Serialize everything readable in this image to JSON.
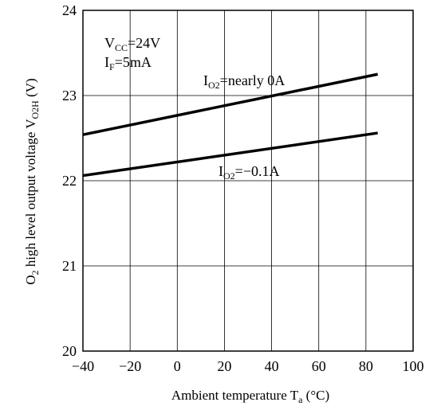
{
  "chart_data": {
    "type": "line",
    "xlabel": {
      "main": "Ambient temperature T",
      "sub": "a",
      "tail": " (°C)"
    },
    "ylabel": {
      "main": "O",
      "sub1": "2",
      "mid": " high level output voltage V",
      "sub2": "O2H",
      "tail": " (V)"
    },
    "xlim": [
      -40,
      100
    ],
    "ylim": [
      20,
      24
    ],
    "xticks": [
      -40,
      -20,
      0,
      20,
      40,
      60,
      80,
      100
    ],
    "xtick_labels": [
      "−40",
      "−20",
      "0",
      "20",
      "40",
      "60",
      "80",
      "100"
    ],
    "yticks": [
      20,
      21,
      22,
      23,
      24
    ],
    "ytick_labels": [
      "20",
      "21",
      "22",
      "23",
      "24"
    ],
    "grid": true,
    "conditions": {
      "vcc": {
        "main": "V",
        "sub": "CC",
        "tail": "=24V"
      },
      "if": {
        "main": "I",
        "sub": "F",
        "tail": "=5mA"
      }
    },
    "series": [
      {
        "name": {
          "main": "I",
          "sub": "O2",
          "tail": "=nearly 0A"
        },
        "x": [
          -40,
          85
        ],
        "y": [
          22.54,
          23.25
        ]
      },
      {
        "name": {
          "main": "I",
          "sub": "O2",
          "tail": "=−0.1A"
        },
        "x": [
          -40,
          85
        ],
        "y": [
          22.06,
          22.56
        ]
      }
    ]
  }
}
